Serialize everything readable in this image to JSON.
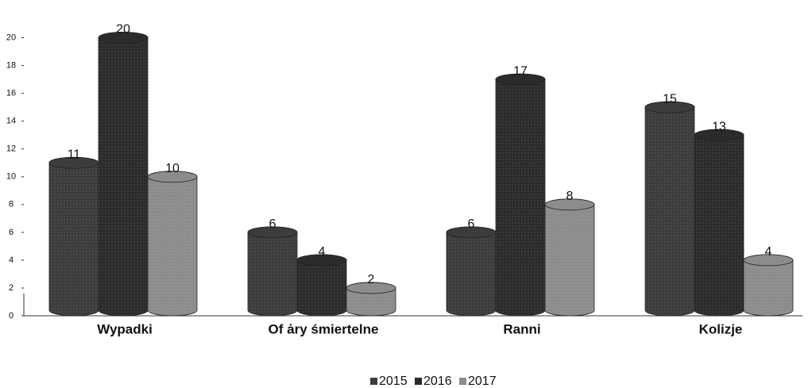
{
  "chart_data": {
    "type": "bar",
    "categories": [
      "Wypadki",
      "Of ȧry śmiertelne",
      "Ranni",
      "Kolizje"
    ],
    "series": [
      {
        "name": "2015",
        "color": "#3c3c3c",
        "values": [
          11,
          6,
          6,
          15
        ]
      },
      {
        "name": "2016",
        "color": "#2b2b2b",
        "values": [
          20,
          4,
          17,
          13
        ]
      },
      {
        "name": "2017",
        "color": "#8c8c8c",
        "values": [
          10,
          2,
          8,
          4
        ]
      }
    ],
    "ylim": [
      0,
      21
    ],
    "yticks": [
      0,
      2,
      4,
      6,
      8,
      10,
      12,
      14,
      16,
      18,
      20
    ],
    "grid": false,
    "legend": "bottom"
  }
}
